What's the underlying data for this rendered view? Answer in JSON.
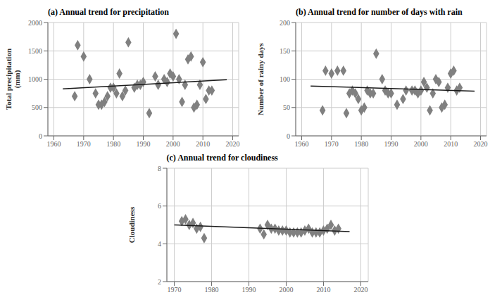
{
  "chart_data": [
    {
      "type": "scatter",
      "title": "(a) Annual trend for precipitation",
      "y_label": "Total precipitation\n(mm)",
      "xlim": [
        1958,
        2022
      ],
      "xticks": [
        1960,
        1970,
        1980,
        1990,
        2000,
        2010,
        2020
      ],
      "ylim": [
        0,
        2000
      ],
      "yticks": [
        0,
        500,
        1000,
        1500,
        2000
      ],
      "grid": true,
      "series": [
        {
          "type": "scatter",
          "color": "#808080",
          "marker": "diamond",
          "x": [
            1967,
            1968,
            1970,
            1972,
            1974,
            1975,
            1976,
            1977,
            1978,
            1979,
            1980,
            1981,
            1982,
            1983,
            1984,
            1985,
            1987,
            1988,
            1989,
            1990,
            1992,
            1994,
            1995,
            1997,
            1998,
            1999,
            2000,
            2001,
            2002,
            2003,
            2004,
            2005,
            2006,
            2007,
            2008,
            2009,
            2010,
            2011,
            2012,
            2013
          ],
          "values": [
            700,
            1600,
            1400,
            1000,
            750,
            550,
            550,
            600,
            700,
            850,
            850,
            750,
            1100,
            700,
            800,
            1650,
            850,
            900,
            900,
            950,
            400,
            1050,
            900,
            1000,
            950,
            1100,
            1050,
            1800,
            1000,
            600,
            900,
            1350,
            1400,
            500,
            550,
            900,
            1300,
            650,
            800,
            800
          ]
        },
        {
          "type": "line",
          "color": "#1a1a1a",
          "x": [
            1963,
            2018
          ],
          "values": [
            830,
            990
          ]
        }
      ]
    },
    {
      "type": "scatter",
      "title": "(b) Annual trend for number of days with rain",
      "y_label": "Number of rainy days",
      "xlim": [
        1958,
        2022
      ],
      "xticks": [
        1960,
        1970,
        1980,
        1990,
        2000,
        2010,
        2020
      ],
      "ylim": [
        0,
        200
      ],
      "yticks": [
        0,
        50,
        100,
        150,
        200
      ],
      "grid": true,
      "series": [
        {
          "type": "scatter",
          "color": "#808080",
          "marker": "diamond",
          "x": [
            1967,
            1968,
            1970,
            1972,
            1974,
            1975,
            1976,
            1977,
            1978,
            1979,
            1980,
            1981,
            1982,
            1983,
            1984,
            1985,
            1987,
            1988,
            1989,
            1990,
            1992,
            1994,
            1995,
            1997,
            1998,
            1999,
            2000,
            2001,
            2002,
            2003,
            2004,
            2005,
            2006,
            2007,
            2008,
            2009,
            2010,
            2011,
            2012,
            2013
          ],
          "values": [
            45,
            115,
            110,
            115,
            115,
            40,
            75,
            80,
            75,
            65,
            45,
            50,
            80,
            75,
            75,
            145,
            100,
            80,
            75,
            75,
            55,
            65,
            80,
            80,
            80,
            75,
            80,
            95,
            85,
            45,
            75,
            100,
            95,
            50,
            55,
            85,
            110,
            115,
            80,
            85
          ]
        },
        {
          "type": "line",
          "color": "#1a1a1a",
          "x": [
            1963,
            2018
          ],
          "values": [
            88,
            79
          ]
        }
      ]
    },
    {
      "type": "scatter",
      "title": "(c) Annual trend for cloudiness",
      "y_label": "Cloudiness",
      "xlim": [
        1968,
        2022
      ],
      "xticks": [
        1970,
        1980,
        1990,
        2000,
        2010,
        2020
      ],
      "ylim": [
        2,
        8
      ],
      "yticks": [
        2,
        4,
        6,
        8
      ],
      "grid": true,
      "series": [
        {
          "type": "scatter",
          "color": "#808080",
          "marker": "diamond",
          "x": [
            1972,
            1973,
            1974,
            1975,
            1976,
            1977,
            1978,
            1993,
            1994,
            1995,
            1996,
            1997,
            1998,
            1999,
            2000,
            2001,
            2002,
            2003,
            2004,
            2005,
            2006,
            2007,
            2008,
            2009,
            2010,
            2011,
            2012,
            2013,
            2014
          ],
          "values": [
            5.2,
            5.3,
            5.0,
            5.1,
            4.8,
            4.9,
            4.3,
            4.8,
            4.5,
            5.0,
            4.8,
            4.8,
            4.7,
            4.7,
            4.7,
            4.6,
            4.6,
            4.6,
            4.6,
            4.7,
            4.8,
            4.6,
            4.6,
            4.6,
            4.7,
            4.8,
            5.0,
            4.7,
            4.8
          ]
        },
        {
          "type": "line",
          "color": "#1a1a1a",
          "x": [
            1970,
            2017
          ],
          "values": [
            5.0,
            4.65
          ]
        }
      ]
    }
  ]
}
